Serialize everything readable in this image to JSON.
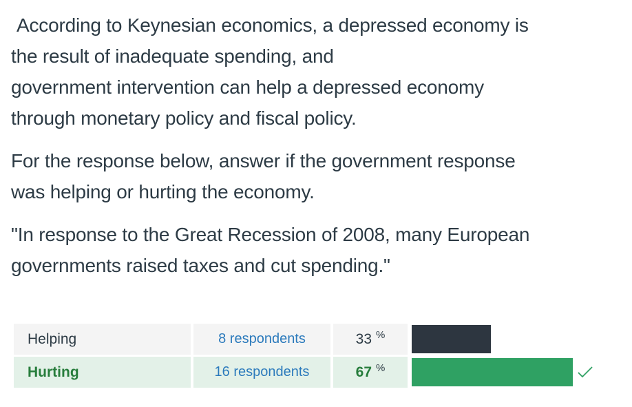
{
  "question": {
    "paragraph1": {
      "line1": "According to Keynesian economics, a depressed economy is",
      "line2": "the result of inadequate spending, and",
      "line3": "government intervention can help a depressed economy",
      "line4": "through monetary policy and fiscal policy."
    },
    "paragraph2": {
      "line1": "For the response below, answer if the government response",
      "line2": "was helping or hurting the economy."
    },
    "paragraph3": {
      "line1": "\"In response to the Great Recession of 2008, many European",
      "line2": "governments raised taxes and cut spending.\""
    }
  },
  "results": {
    "rows": [
      {
        "answer": "Helping",
        "respondents": "8 respondents",
        "percent": "33",
        "percent_symbol": "%",
        "fraction": 0.33,
        "bar_color": "#2d3640",
        "correct": false
      },
      {
        "answer": "Hurting",
        "respondents": "16 respondents",
        "percent": "67",
        "percent_symbol": "%",
        "fraction": 0.67,
        "bar_color": "#2fa163",
        "correct": true
      }
    ],
    "correct_icon": "check-icon",
    "correct_color": "#2fa163"
  }
}
